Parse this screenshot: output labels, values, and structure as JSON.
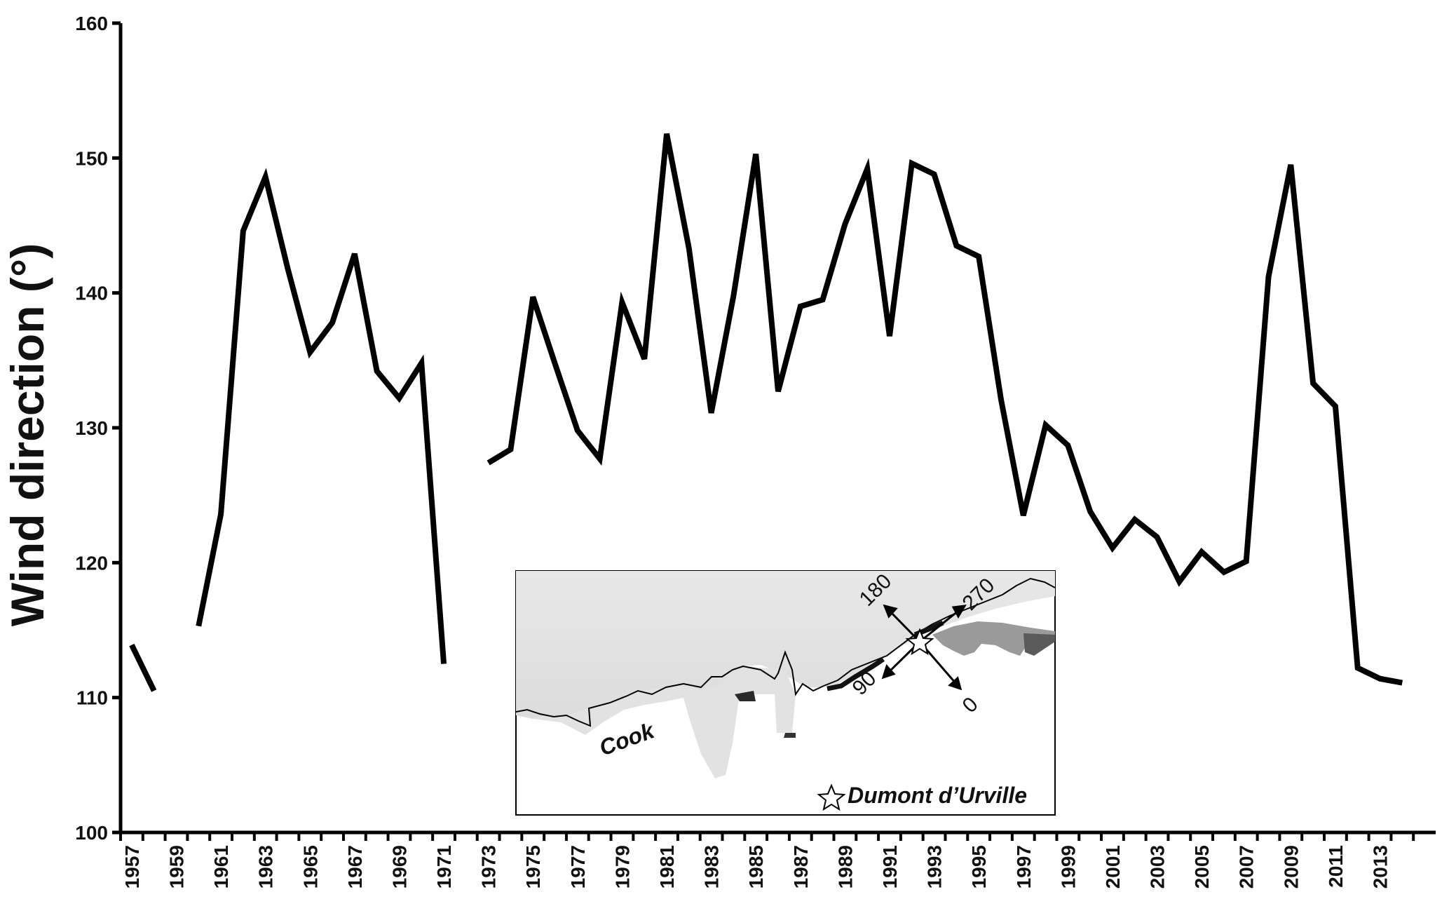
{
  "chart_data": {
    "type": "line",
    "title": "",
    "xlabel": "",
    "ylabel": "Wind direction (°)",
    "xlim": [
      1957,
      2015
    ],
    "ylim": [
      100,
      160
    ],
    "yticks": [
      100,
      110,
      120,
      130,
      140,
      150,
      160
    ],
    "xticks": [
      1957,
      1959,
      1961,
      1963,
      1965,
      1967,
      1969,
      1971,
      1973,
      1975,
      1977,
      1979,
      1981,
      1983,
      1985,
      1987,
      1989,
      1991,
      1993,
      1995,
      1997,
      1999,
      2001,
      2003,
      2005,
      2007,
      2009,
      2011,
      2013
    ],
    "grid": false,
    "line_color": "#000000",
    "series": [
      {
        "x": [
          1957,
          1958,
          1959,
          1960,
          1961,
          1962,
          1963,
          1964,
          1965,
          1966,
          1967,
          1968,
          1969,
          1970,
          1971,
          1972,
          1973,
          1974,
          1975,
          1976,
          1977,
          1978,
          1979,
          1980,
          1981,
          1982,
          1983,
          1984,
          1985,
          1986,
          1987,
          1988,
          1989,
          1990,
          1991,
          1992,
          1993,
          1994,
          1995,
          1996,
          1997,
          1998,
          1999,
          2000,
          2001,
          2002,
          2003,
          2004,
          2005,
          2006,
          2007,
          2008,
          2009,
          2010,
          2011,
          2012,
          2013,
          2014
        ],
        "values": [
          113.9,
          110.5,
          null,
          115.3,
          123.6,
          144.6,
          148.6,
          141.8,
          135.6,
          137.8,
          142.9,
          134.2,
          132.2,
          134.8,
          112.5,
          null,
          127.4,
          128.4,
          139.7,
          134.7,
          129.8,
          127.7,
          139.3,
          135.1,
          151.8,
          143.3,
          131.1,
          139.8,
          150.3,
          132.7,
          139.0,
          139.5,
          145.1,
          149.2,
          136.8,
          149.6,
          148.8,
          143.5,
          142.7,
          132.1,
          123.5,
          130.2,
          128.7,
          123.8,
          121.1,
          123.2,
          121.9,
          118.6,
          120.8,
          119.3,
          120.1,
          141.2,
          149.5,
          133.3,
          131.6,
          112.2,
          111.4,
          111.1
        ]
      }
    ],
    "inset_map": {
      "compass_labels": [
        "180",
        "270",
        "90",
        "0"
      ],
      "place_labels": [
        "Cook"
      ],
      "legend_text": "Dumont d’Urville",
      "legend_icon": "star-icon"
    }
  }
}
